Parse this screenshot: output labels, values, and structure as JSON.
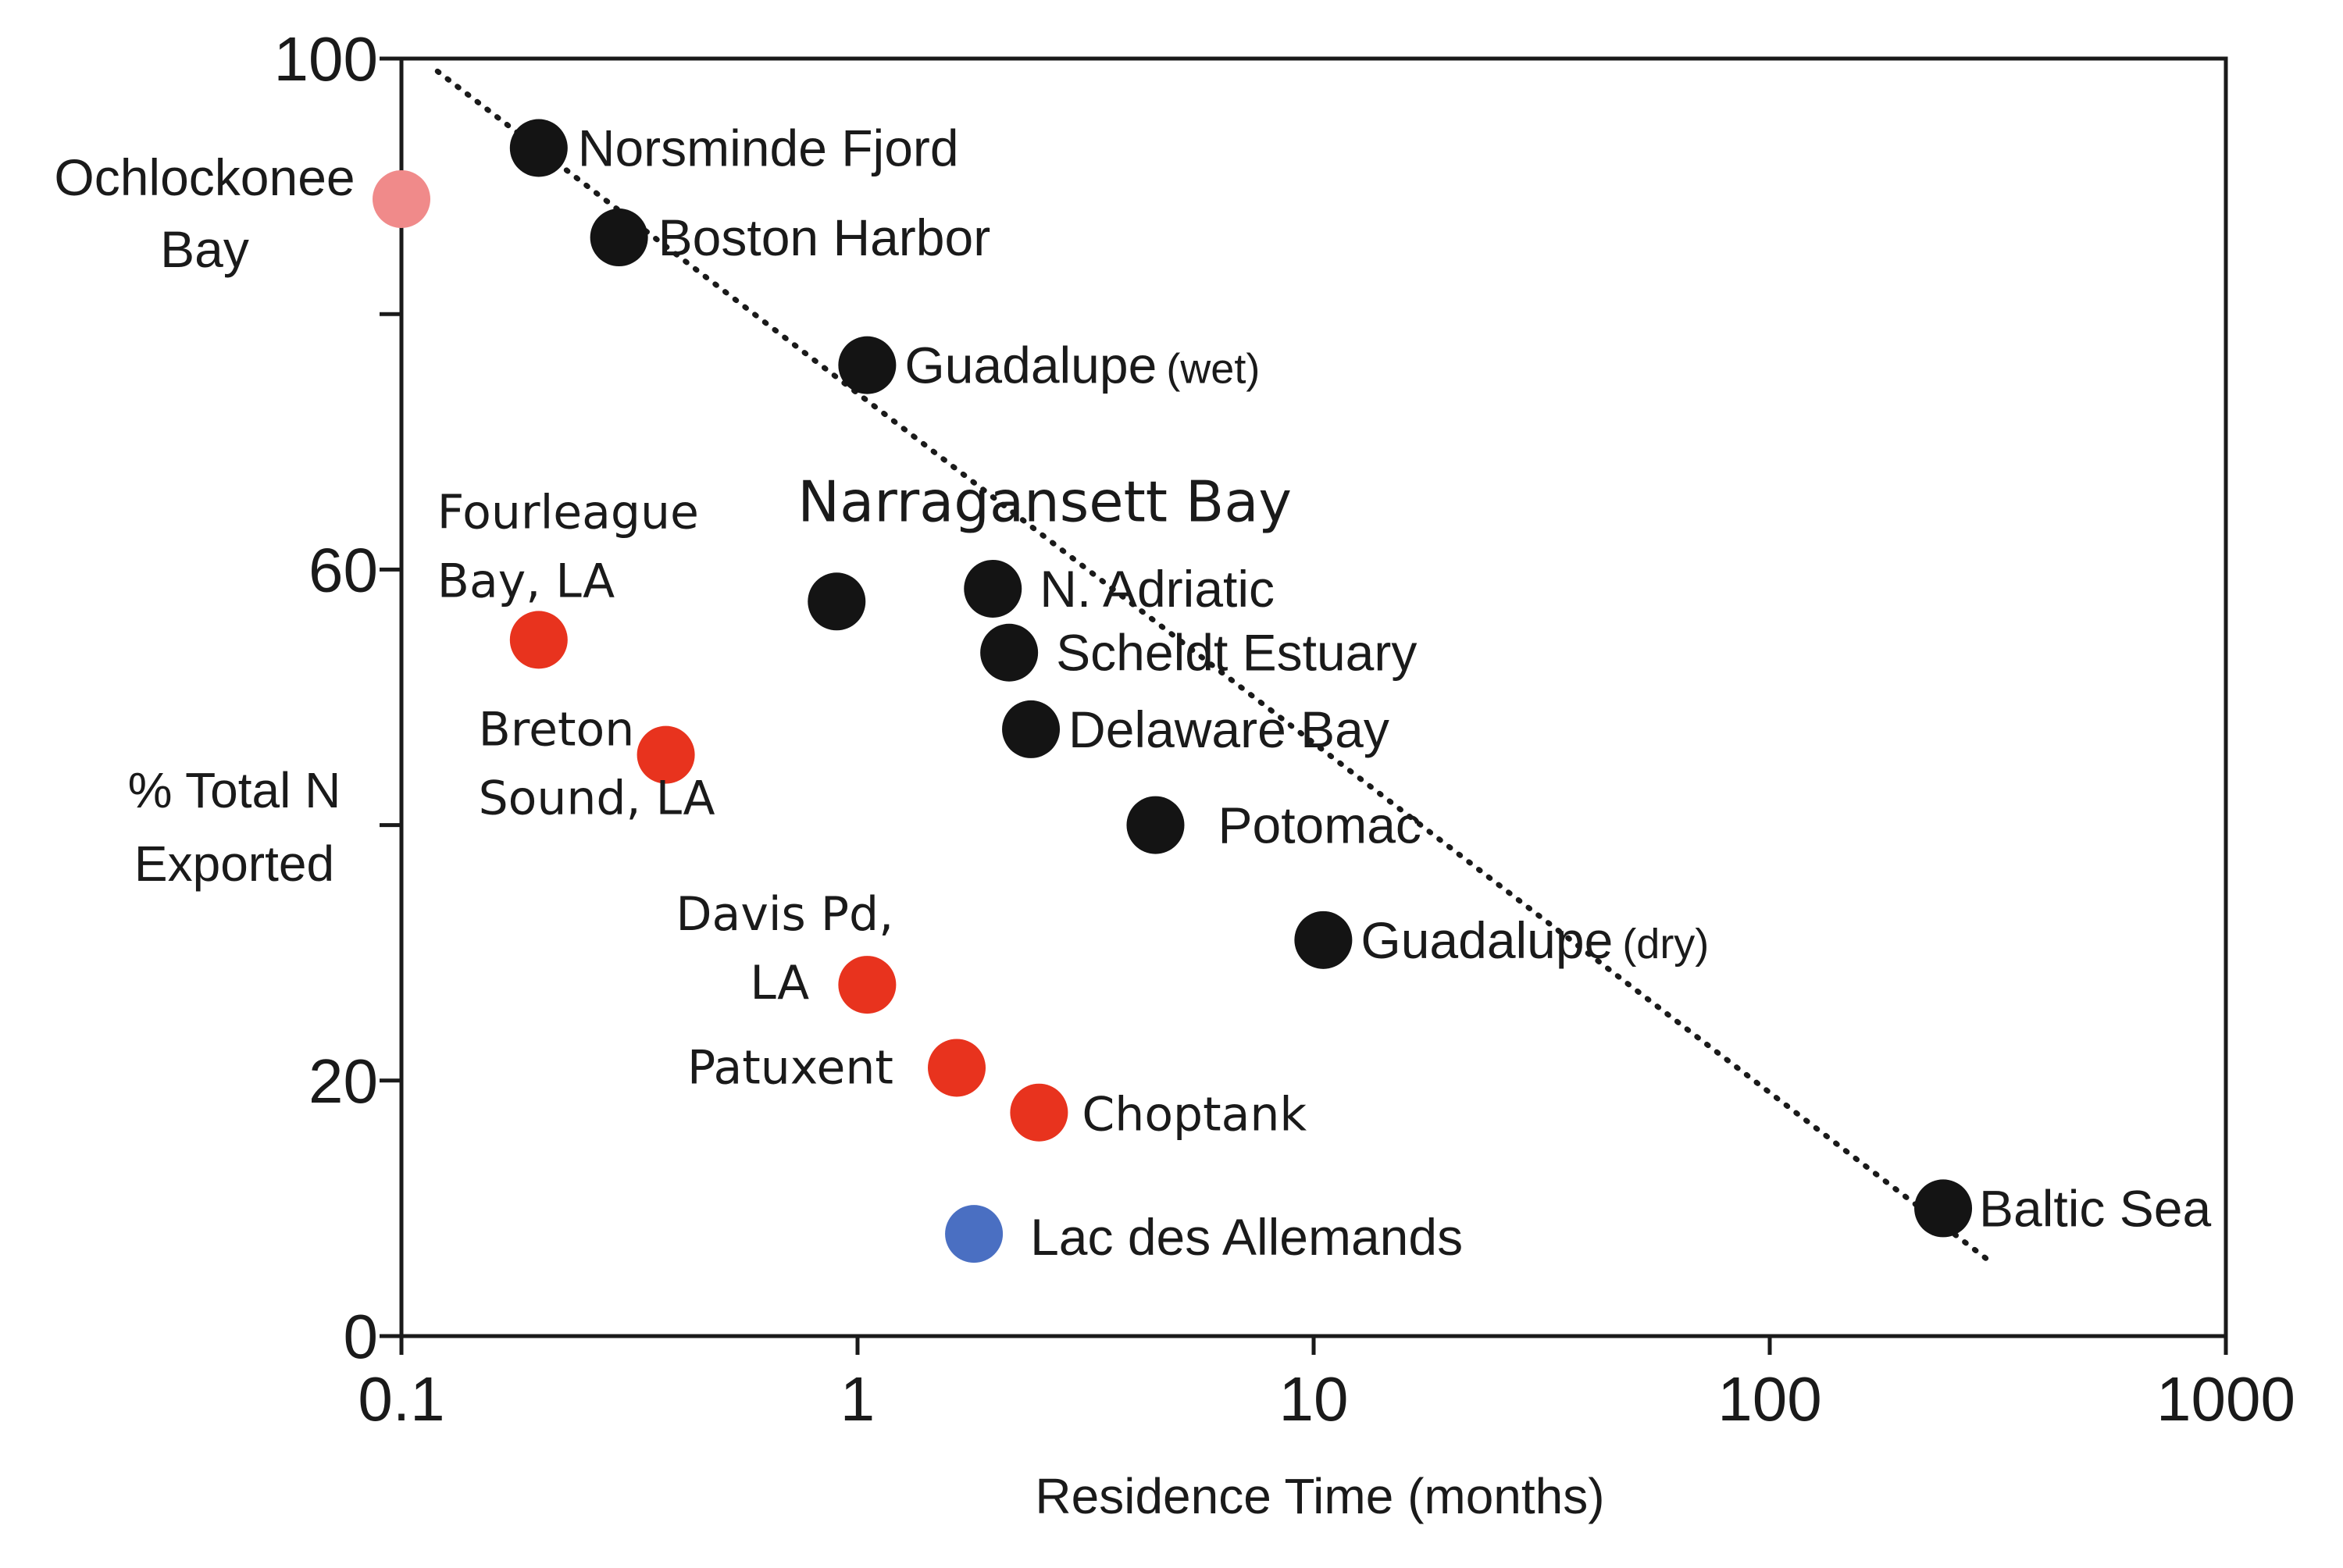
{
  "chart_data": {
    "type": "scatter",
    "title": "",
    "xlabel": "Residence Time (months)",
    "ylabel": [
      "% Total N",
      "Exported"
    ],
    "xscale": "log",
    "xlim": [
      0.1,
      1000
    ],
    "ylim": [
      0,
      100
    ],
    "xticks": [
      "0.1",
      "1",
      "10",
      "100",
      "1000"
    ],
    "yticks": [
      {
        "value": 0,
        "label": "0"
      },
      {
        "value": 20,
        "label": "20"
      },
      {
        "value": 40,
        "label": ""
      },
      {
        "value": 60,
        "label": "60"
      },
      {
        "value": 80,
        "label": ""
      },
      {
        "value": 100,
        "label": "100"
      }
    ],
    "grid": false,
    "colors": {
      "black": "#141414",
      "red": "#e8331e",
      "pink": "#f08a8a",
      "blue": "#4a6fc2",
      "axis": "#1a1a1a"
    },
    "trendline": {
      "style": "dotted",
      "points": [
        [
          0.12,
          99
        ],
        [
          300,
          6
        ]
      ]
    },
    "points": [
      {
        "label": "Norsminde Fjord",
        "note": "",
        "x": 0.2,
        "y": 93,
        "color": "black"
      },
      {
        "label": [
          "Ochlockonee",
          "Bay"
        ],
        "note": "",
        "x": 0.1,
        "y": 89,
        "color": "pink"
      },
      {
        "label": "Boston Harbor",
        "note": "",
        "x": 0.3,
        "y": 86,
        "color": "black"
      },
      {
        "label": "Guadalupe",
        "note": "(wet)",
        "x": 1.05,
        "y": 76,
        "color": "black"
      },
      {
        "label": "",
        "note": "",
        "x": 0.9,
        "y": 57.5,
        "color": "black"
      },
      {
        "label": "N. Adriatic",
        "note": "",
        "x": 1.98,
        "y": 58.5,
        "color": "black"
      },
      {
        "label": "Scheldt Estuary",
        "note": "",
        "x": 2.15,
        "y": 53.5,
        "color": "black"
      },
      {
        "label": "Delaware Bay",
        "note": "",
        "x": 2.4,
        "y": 47.5,
        "color": "black"
      },
      {
        "label": "Potomac",
        "note": "",
        "x": 4.5,
        "y": 40,
        "color": "black"
      },
      {
        "label": "Guadalupe",
        "note": "(dry)",
        "x": 10.5,
        "y": 31,
        "color": "black"
      },
      {
        "label": "Baltic Sea",
        "note": "",
        "x": 240,
        "y": 10,
        "color": "black"
      },
      {
        "label": [
          "Fourleague",
          "Bay, LA"
        ],
        "note": "",
        "x": 0.2,
        "y": 54.5,
        "color": "red"
      },
      {
        "label": [
          "Breton",
          "Sound, LA"
        ],
        "note": "",
        "x": 0.38,
        "y": 45.5,
        "color": "red"
      },
      {
        "label": [
          "Davis Pd,",
          "LA"
        ],
        "note": "",
        "x": 1.05,
        "y": 27.5,
        "color": "red"
      },
      {
        "label": "Patuxent",
        "note": "",
        "x": 1.65,
        "y": 21,
        "color": "red"
      },
      {
        "label": "Choptank",
        "note": "",
        "x": 2.5,
        "y": 17.5,
        "color": "red"
      },
      {
        "label": "Lac des Allemands",
        "note": "",
        "x": 1.8,
        "y": 8,
        "color": "blue"
      }
    ],
    "annotations": [
      {
        "text": "Narragansett Bay",
        "x": 0.9,
        "y": 65
      }
    ]
  }
}
